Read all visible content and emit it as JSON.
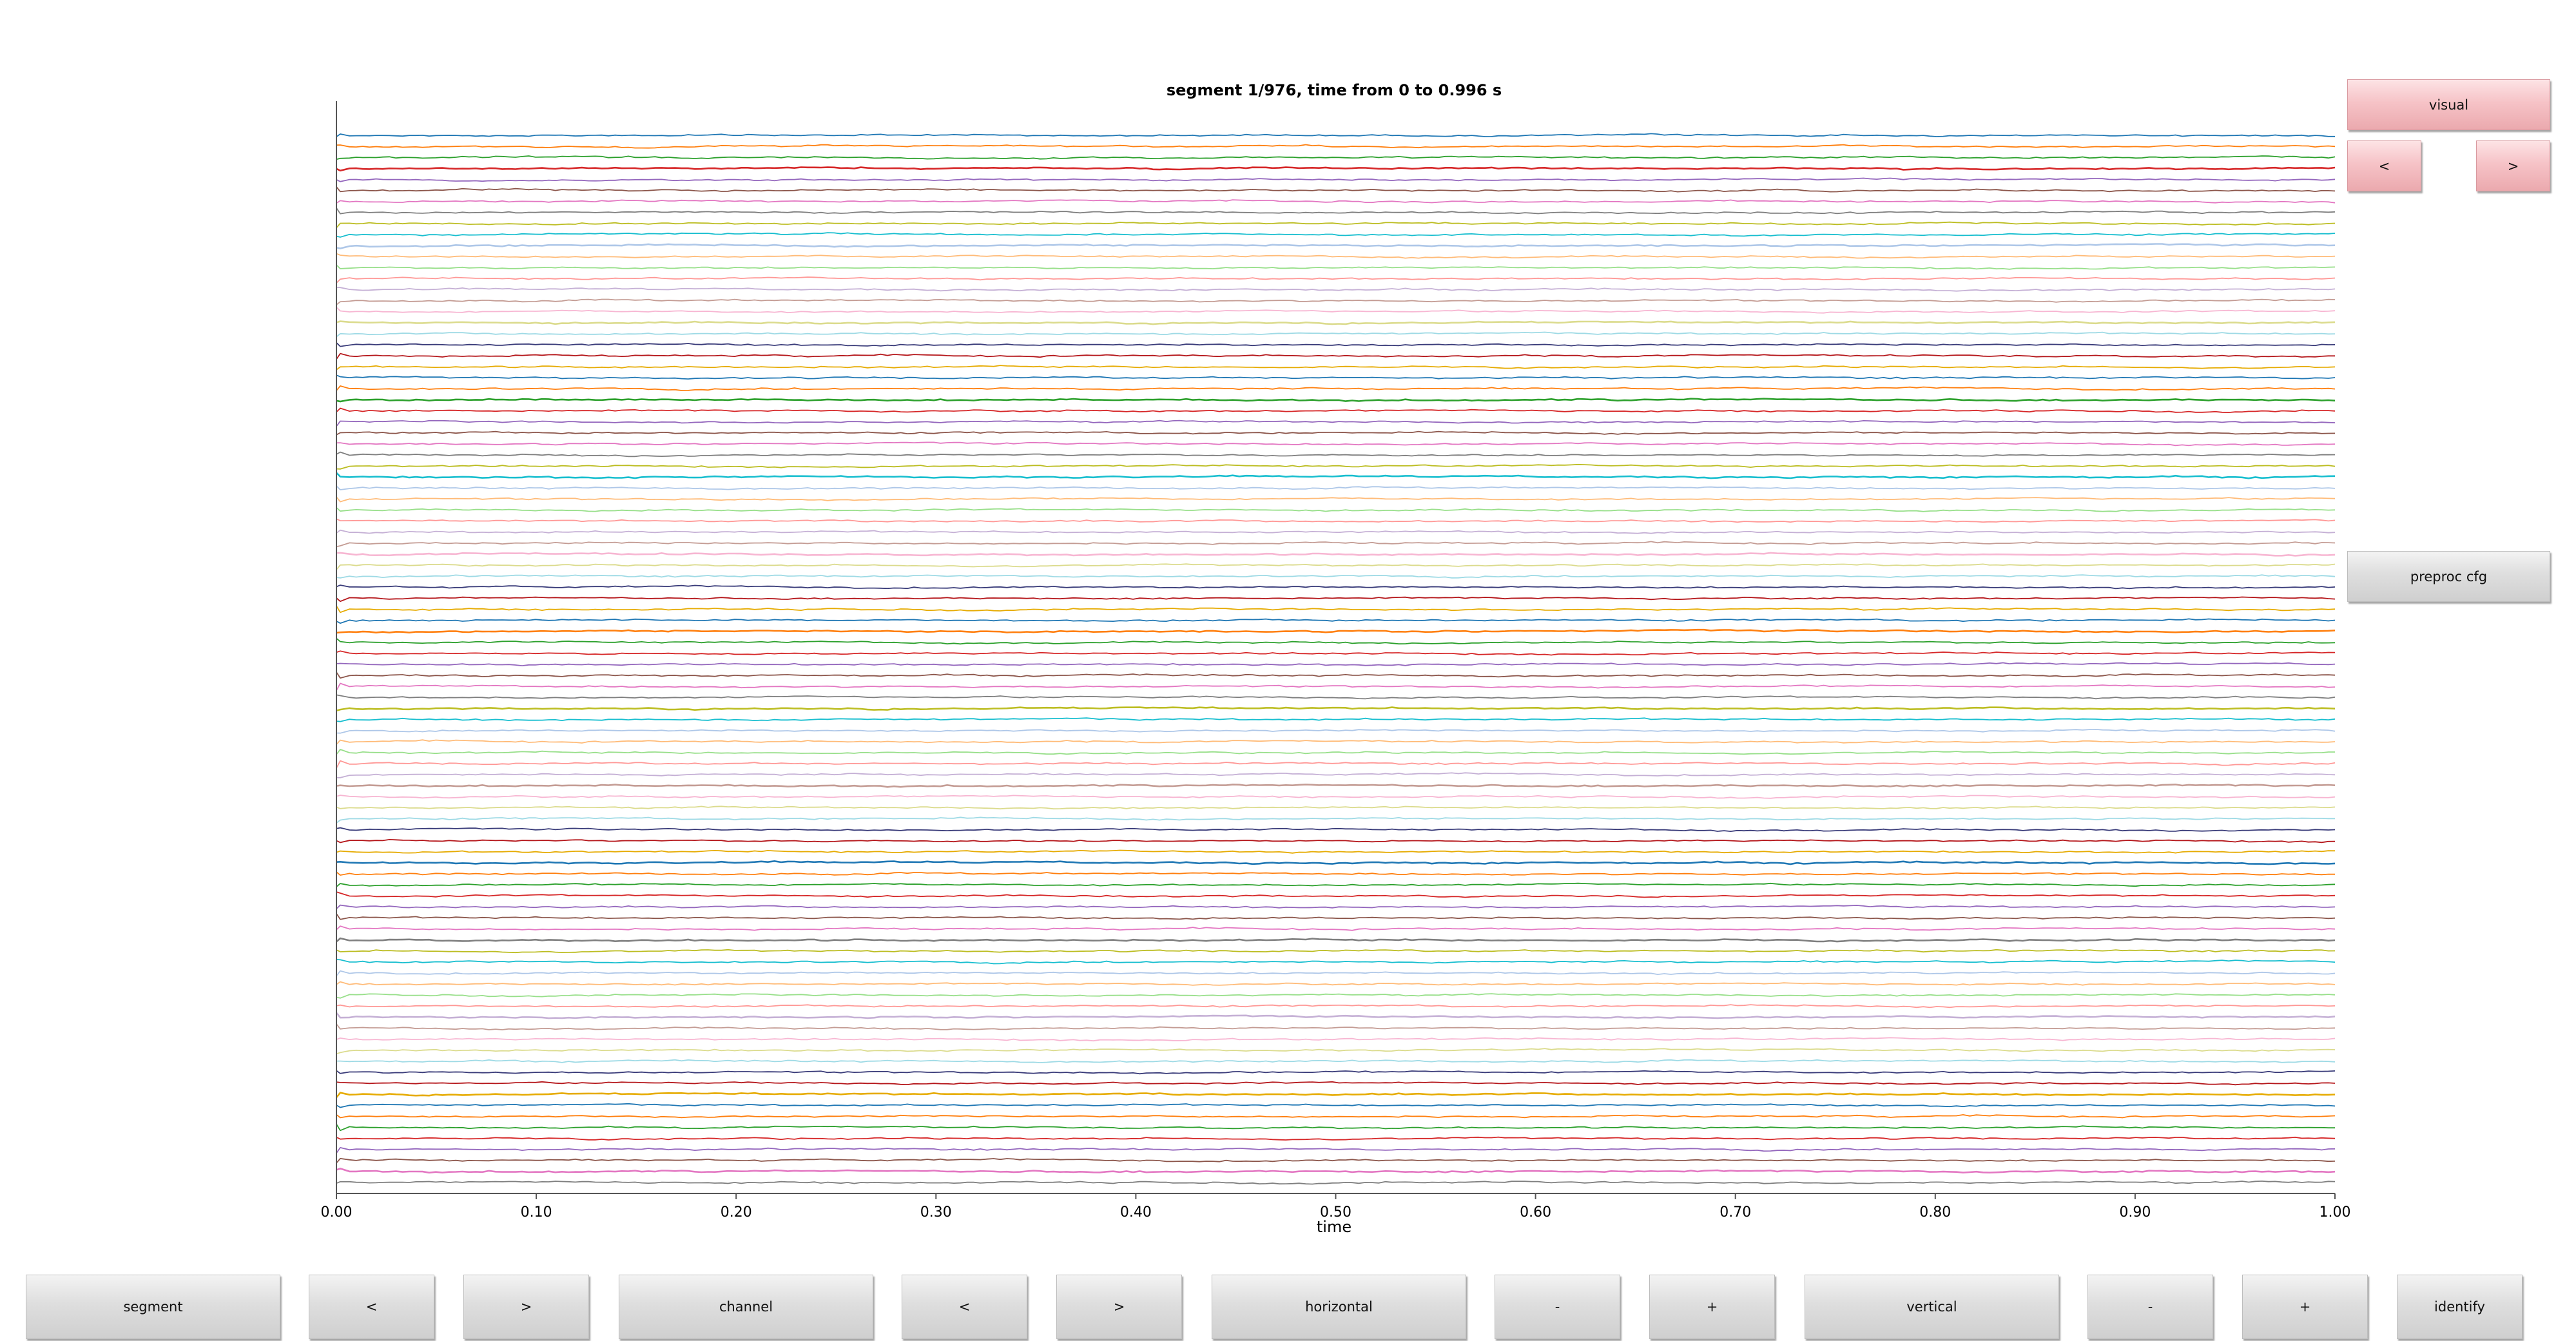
{
  "title": "segment 1/976, time from 0 to 0.996 s",
  "side_buttons": {
    "visual": "visual",
    "prev": "<",
    "next": ">",
    "preproc": "preproc cfg"
  },
  "toolbar": {
    "segment": "segment",
    "segment_prev": "<",
    "segment_next": ">",
    "channel": "channel",
    "channel_prev": "<",
    "channel_next": ">",
    "horizontal": "horizontal",
    "horizontal_minus": "-",
    "horizontal_plus": "+",
    "vertical": "vertical",
    "vertical_minus": "-",
    "vertical_plus": "+",
    "identify": "identify"
  },
  "chart_data": {
    "type": "line",
    "title": "segment 1/976, time from 0 to 0.996 s",
    "xlabel": "time",
    "ylabel": "",
    "xlim": [
      0,
      1.0
    ],
    "x_ticks": [
      "0.00",
      "0.10",
      "0.20",
      "0.30",
      "0.40",
      "0.50",
      "0.60",
      "0.70",
      "0.80",
      "0.90",
      "1.00"
    ],
    "channel_count": 96,
    "grid": false,
    "legend": "none",
    "series_colors": [
      "#1f77b4",
      "#ff7f0e",
      "#2ca02c",
      "#d62728",
      "#9467bd",
      "#8c564b",
      "#e377c2",
      "#7f7f7f",
      "#bcbd22",
      "#17becf",
      "#aec7e8",
      "#ffbb78",
      "#98df8a",
      "#ff9896",
      "#c5b0d5",
      "#c49c94",
      "#f7b6d2",
      "#dbdb8d",
      "#9edae5",
      "#393b79",
      "#b5171b",
      "#e6ab02"
    ]
  }
}
